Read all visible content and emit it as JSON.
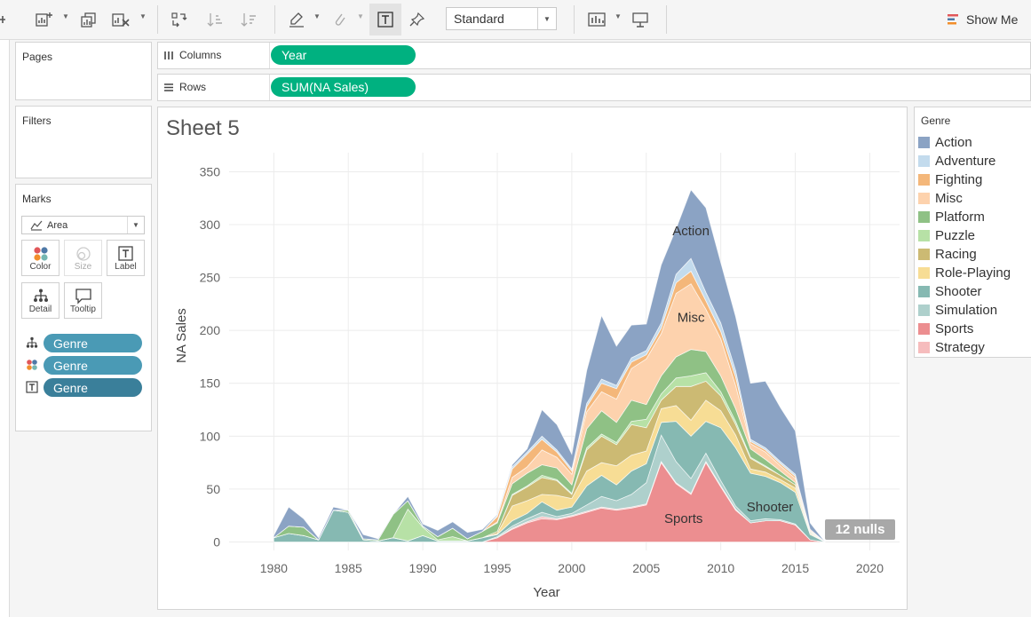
{
  "toolbar": {
    "mark_type_value": "Standard",
    "show_me_label": "Show Me"
  },
  "cards": {
    "pages_title": "Pages",
    "filters_title": "Filters",
    "marks_title": "Marks",
    "mark_type": "Area",
    "buttons": {
      "color": "Color",
      "size": "Size",
      "label": "Label",
      "detail": "Detail",
      "tooltip": "Tooltip"
    },
    "fields": [
      "Genre",
      "Genre",
      "Genre"
    ]
  },
  "shelves": {
    "columns_label": "Columns",
    "columns_pill": "Year",
    "rows_label": "Rows",
    "rows_pill": "SUM(NA Sales)"
  },
  "sheet": {
    "title": "Sheet 5",
    "nulls_badge": "12 nulls"
  },
  "legend": {
    "title": "Genre",
    "items": [
      {
        "label": "Action",
        "color": "#8ba3c4"
      },
      {
        "label": "Adventure",
        "color": "#c3dbed"
      },
      {
        "label": "Fighting",
        "color": "#f4b77a"
      },
      {
        "label": "Misc",
        "color": "#fdd2ad"
      },
      {
        "label": "Platform",
        "color": "#8fc185"
      },
      {
        "label": "Puzzle",
        "color": "#b7e1a6"
      },
      {
        "label": "Racing",
        "color": "#ccba73"
      },
      {
        "label": "Role-Playing",
        "color": "#f7dd95"
      },
      {
        "label": "Shooter",
        "color": "#86b9b2"
      },
      {
        "label": "Simulation",
        "color": "#aed0cc"
      },
      {
        "label": "Sports",
        "color": "#ec8e90"
      },
      {
        "label": "Strategy",
        "color": "#f6bcbd"
      }
    ]
  },
  "chart_data": {
    "type": "area",
    "stacked": true,
    "title": "",
    "xlabel": "Year",
    "ylabel": "NA Sales",
    "xlim": [
      1977,
      2022
    ],
    "ylim": [
      -8,
      368
    ],
    "x_ticks": [
      1980,
      1985,
      1990,
      1995,
      2000,
      2005,
      2010,
      2015,
      2020
    ],
    "y_ticks": [
      0,
      50,
      100,
      150,
      200,
      250,
      300,
      350
    ],
    "grid": true,
    "x": [
      1980,
      1981,
      1982,
      1983,
      1984,
      1985,
      1986,
      1987,
      1988,
      1989,
      1990,
      1991,
      1992,
      1993,
      1994,
      1995,
      1996,
      1997,
      1998,
      1999,
      2000,
      2001,
      2002,
      2003,
      2004,
      2005,
      2006,
      2007,
      2008,
      2009,
      2010,
      2011,
      2012,
      2013,
      2014,
      2015,
      2016,
      2017
    ],
    "series": [
      {
        "name": "Sports",
        "values": [
          0,
          0,
          0,
          0,
          0,
          0,
          0,
          0,
          0,
          0,
          0,
          0,
          0,
          0,
          0,
          4,
          12,
          18,
          22,
          21,
          24,
          28,
          32,
          30,
          32,
          35,
          75,
          55,
          45,
          75,
          52,
          30,
          18,
          20,
          20,
          16,
          2,
          0
        ]
      },
      {
        "name": "Strategy",
        "values": [
          0,
          0,
          0,
          0,
          0,
          0,
          0,
          0,
          0,
          0,
          0,
          0,
          0,
          0,
          0,
          0,
          1,
          1,
          2,
          1,
          1,
          1,
          1,
          1,
          1,
          1,
          1,
          1,
          1,
          1,
          1,
          1,
          0,
          0,
          0,
          0,
          0,
          0
        ]
      },
      {
        "name": "Simulation",
        "values": [
          0,
          0,
          0,
          0,
          0,
          0,
          0,
          0,
          0,
          0,
          0,
          0,
          0,
          0,
          0,
          1,
          2,
          3,
          4,
          2,
          2,
          6,
          10,
          8,
          12,
          20,
          25,
          20,
          14,
          8,
          5,
          3,
          2,
          2,
          1,
          1,
          0,
          0
        ]
      },
      {
        "name": "Shooter",
        "values": [
          4,
          8,
          6,
          2,
          30,
          28,
          2,
          1,
          4,
          1,
          6,
          1,
          1,
          1,
          4,
          2,
          5,
          5,
          10,
          6,
          6,
          18,
          20,
          15,
          22,
          18,
          12,
          38,
          40,
          30,
          50,
          55,
          45,
          40,
          35,
          30,
          5,
          0
        ]
      },
      {
        "name": "Role-Playing",
        "values": [
          0,
          0,
          0,
          0,
          0,
          0,
          0,
          0,
          0,
          0,
          0,
          0,
          0,
          0,
          0,
          1,
          14,
          12,
          7,
          14,
          8,
          14,
          12,
          18,
          15,
          12,
          13,
          15,
          15,
          20,
          16,
          12,
          4,
          4,
          3,
          4,
          1,
          0
        ]
      },
      {
        "name": "Racing",
        "values": [
          0,
          0,
          0,
          0,
          0,
          0,
          0,
          0,
          0,
          0,
          0,
          0,
          0,
          0,
          0,
          2,
          10,
          13,
          16,
          14,
          4,
          20,
          25,
          20,
          29,
          22,
          8,
          18,
          32,
          18,
          14,
          10,
          10,
          5,
          4,
          3,
          1,
          0
        ]
      },
      {
        "name": "Puzzle",
        "values": [
          0,
          0,
          0,
          0,
          0,
          0,
          0,
          0,
          0,
          30,
          8,
          1,
          4,
          0,
          0,
          0,
          1,
          1,
          2,
          1,
          1,
          2,
          2,
          2,
          3,
          8,
          6,
          8,
          10,
          8,
          4,
          3,
          1,
          1,
          0,
          0,
          0,
          0
        ]
      },
      {
        "name": "Platform",
        "values": [
          0,
          7,
          8,
          0,
          0,
          2,
          1,
          1,
          22,
          8,
          1,
          3,
          8,
          2,
          6,
          8,
          10,
          12,
          10,
          11,
          8,
          18,
          22,
          19,
          20,
          14,
          17,
          20,
          25,
          20,
          15,
          12,
          8,
          6,
          4,
          2,
          1,
          0
        ]
      },
      {
        "name": "Misc",
        "values": [
          0,
          0,
          0,
          0,
          0,
          0,
          0,
          0,
          0,
          0,
          0,
          0,
          0,
          0,
          0,
          1,
          6,
          6,
          14,
          10,
          10,
          16,
          18,
          22,
          30,
          43,
          40,
          60,
          62,
          40,
          35,
          22,
          5,
          7,
          5,
          4,
          1,
          0
        ]
      },
      {
        "name": "Fighting",
        "values": [
          0,
          0,
          0,
          0,
          0,
          0,
          0,
          0,
          0,
          0,
          0,
          0,
          0,
          0,
          0,
          5,
          8,
          12,
          10,
          5,
          3,
          5,
          8,
          10,
          6,
          4,
          5,
          10,
          12,
          8,
          7,
          8,
          2,
          2,
          2,
          2,
          1,
          0
        ]
      },
      {
        "name": "Adventure",
        "values": [
          0,
          0,
          0,
          0,
          0,
          0,
          0,
          0,
          0,
          0,
          0,
          0,
          0,
          0,
          0,
          1,
          2,
          2,
          3,
          2,
          2,
          3,
          4,
          3,
          4,
          4,
          5,
          8,
          12,
          8,
          8,
          6,
          2,
          2,
          2,
          2,
          0,
          0
        ]
      },
      {
        "name": "Action",
        "values": [
          2,
          18,
          8,
          2,
          3,
          0,
          4,
          1,
          0,
          4,
          2,
          6,
          6,
          6,
          2,
          1,
          2,
          3,
          25,
          24,
          14,
          31,
          60,
          37,
          31,
          25,
          55,
          43,
          65,
          80,
          57,
          51,
          53,
          63,
          51,
          41,
          6,
          0
        ]
      }
    ],
    "annotations": [
      {
        "text": "Action",
        "x": 2008,
        "y": 290
      },
      {
        "text": "Misc",
        "x": 2008,
        "y": 208
      },
      {
        "text": "Sports",
        "x": 2007.5,
        "y": 18
      },
      {
        "text": "Shooter",
        "x": 2013.3,
        "y": 29
      }
    ]
  }
}
